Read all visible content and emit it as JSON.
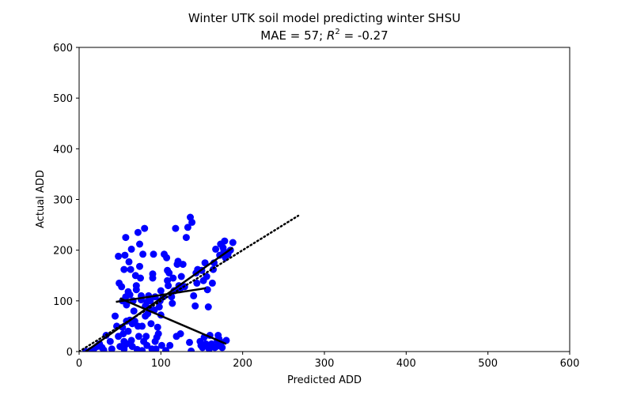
{
  "chart_data": {
    "type": "scatter",
    "title_line1": "Winter UTK soil model predicting winter SHSU",
    "title_line2_prefix": "MAE = 57; ",
    "title_r": "R",
    "title_sup": "2",
    "title_line2_suffix": " = -0.27",
    "xlabel": "Predicted ADD",
    "ylabel": "Actual ADD",
    "xlim": [
      0,
      600
    ],
    "ylim": [
      0,
      600
    ],
    "xticks": [
      0,
      100,
      200,
      300,
      400,
      500,
      600
    ],
    "yticks": [
      0,
      100,
      200,
      300,
      400,
      500,
      600
    ],
    "grid": false,
    "point_color": "#0000ff",
    "line_color": "#000000",
    "points": [
      [
        8,
        0
      ],
      [
        14,
        2
      ],
      [
        18,
        5
      ],
      [
        22,
        10
      ],
      [
        25,
        15
      ],
      [
        28,
        8
      ],
      [
        30,
        3
      ],
      [
        33,
        32
      ],
      [
        38,
        20
      ],
      [
        40,
        5
      ],
      [
        44,
        70
      ],
      [
        46,
        50
      ],
      [
        48,
        30
      ],
      [
        48,
        188
      ],
      [
        49,
        135
      ],
      [
        50,
        10
      ],
      [
        52,
        128
      ],
      [
        53,
        100
      ],
      [
        53,
        48
      ],
      [
        54,
        35
      ],
      [
        55,
        5
      ],
      [
        55,
        20
      ],
      [
        55,
        162
      ],
      [
        56,
        190
      ],
      [
        57,
        225
      ],
      [
        57,
        108
      ],
      [
        58,
        92
      ],
      [
        58,
        60
      ],
      [
        58,
        15
      ],
      [
        60,
        118
      ],
      [
        60,
        40
      ],
      [
        61,
        177
      ],
      [
        62,
        62
      ],
      [
        62,
        112
      ],
      [
        63,
        162
      ],
      [
        64,
        202
      ],
      [
        64,
        22
      ],
      [
        65,
        55
      ],
      [
        65,
        10
      ],
      [
        66,
        100
      ],
      [
        67,
        80
      ],
      [
        68,
        60
      ],
      [
        69,
        150
      ],
      [
        70,
        122
      ],
      [
        70,
        130
      ],
      [
        71,
        4
      ],
      [
        72,
        50
      ],
      [
        72,
        235
      ],
      [
        73,
        30
      ],
      [
        74,
        168
      ],
      [
        74,
        212
      ],
      [
        75,
        145
      ],
      [
        76,
        102
      ],
      [
        76,
        110
      ],
      [
        77,
        2
      ],
      [
        77,
        50
      ],
      [
        78,
        192
      ],
      [
        79,
        20
      ],
      [
        80,
        243
      ],
      [
        81,
        90
      ],
      [
        81,
        70
      ],
      [
        82,
        30
      ],
      [
        83,
        98
      ],
      [
        83,
        12
      ],
      [
        84,
        75
      ],
      [
        85,
        110
      ],
      [
        86,
        85
      ],
      [
        87,
        100
      ],
      [
        88,
        55
      ],
      [
        89,
        5
      ],
      [
        90,
        153
      ],
      [
        90,
        145
      ],
      [
        91,
        192
      ],
      [
        92,
        82
      ],
      [
        93,
        108
      ],
      [
        93,
        20
      ],
      [
        94,
        5
      ],
      [
        95,
        28
      ],
      [
        96,
        48
      ],
      [
        97,
        35
      ],
      [
        98,
        88
      ],
      [
        99,
        100
      ],
      [
        100,
        120
      ],
      [
        100,
        72
      ],
      [
        101,
        12
      ],
      [
        103,
        108
      ],
      [
        104,
        192
      ],
      [
        106,
        2
      ],
      [
        107,
        185
      ],
      [
        108,
        160
      ],
      [
        108,
        140
      ],
      [
        109,
        130
      ],
      [
        110,
        155
      ],
      [
        111,
        12
      ],
      [
        113,
        108
      ],
      [
        114,
        95
      ],
      [
        115,
        145
      ],
      [
        116,
        120
      ],
      [
        117,
        120
      ],
      [
        118,
        243
      ],
      [
        119,
        30
      ],
      [
        120,
        172
      ],
      [
        121,
        178
      ],
      [
        122,
        130
      ],
      [
        123,
        122
      ],
      [
        124,
        35
      ],
      [
        125,
        148
      ],
      [
        127,
        172
      ],
      [
        129,
        128
      ],
      [
        131,
        225
      ],
      [
        133,
        245
      ],
      [
        135,
        18
      ],
      [
        136,
        265
      ],
      [
        137,
        1
      ],
      [
        138,
        255
      ],
      [
        140,
        110
      ],
      [
        142,
        90
      ],
      [
        143,
        155
      ],
      [
        144,
        135
      ],
      [
        145,
        162
      ],
      [
        148,
        20
      ],
      [
        149,
        12
      ],
      [
        150,
        160
      ],
      [
        151,
        8
      ],
      [
        152,
        140
      ],
      [
        153,
        28
      ],
      [
        154,
        175
      ],
      [
        155,
        15
      ],
      [
        156,
        148
      ],
      [
        157,
        122
      ],
      [
        158,
        88
      ],
      [
        159,
        5
      ],
      [
        160,
        32
      ],
      [
        161,
        10
      ],
      [
        162,
        15
      ],
      [
        163,
        135
      ],
      [
        164,
        162
      ],
      [
        165,
        175
      ],
      [
        166,
        8
      ],
      [
        167,
        202
      ],
      [
        168,
        10
      ],
      [
        169,
        22
      ],
      [
        170,
        32
      ],
      [
        171,
        25
      ],
      [
        172,
        190
      ],
      [
        173,
        212
      ],
      [
        174,
        18
      ],
      [
        175,
        8
      ],
      [
        176,
        205
      ],
      [
        177,
        198
      ],
      [
        178,
        218
      ],
      [
        179,
        185
      ],
      [
        180,
        22
      ],
      [
        182,
        192
      ],
      [
        185,
        200
      ],
      [
        188,
        215
      ]
    ],
    "lines": [
      {
        "style": "dotted",
        "x": [
          0,
          268
        ],
        "y": [
          0,
          268
        ]
      },
      {
        "style": "solid",
        "x": [
          8,
          188
        ],
        "y": [
          0,
          205
        ]
      },
      {
        "style": "solid",
        "x": [
          45,
          155
        ],
        "y": [
          98,
          125
        ]
      },
      {
        "style": "solid",
        "x": [
          50,
          180
        ],
        "y": [
          105,
          15
        ]
      }
    ]
  }
}
